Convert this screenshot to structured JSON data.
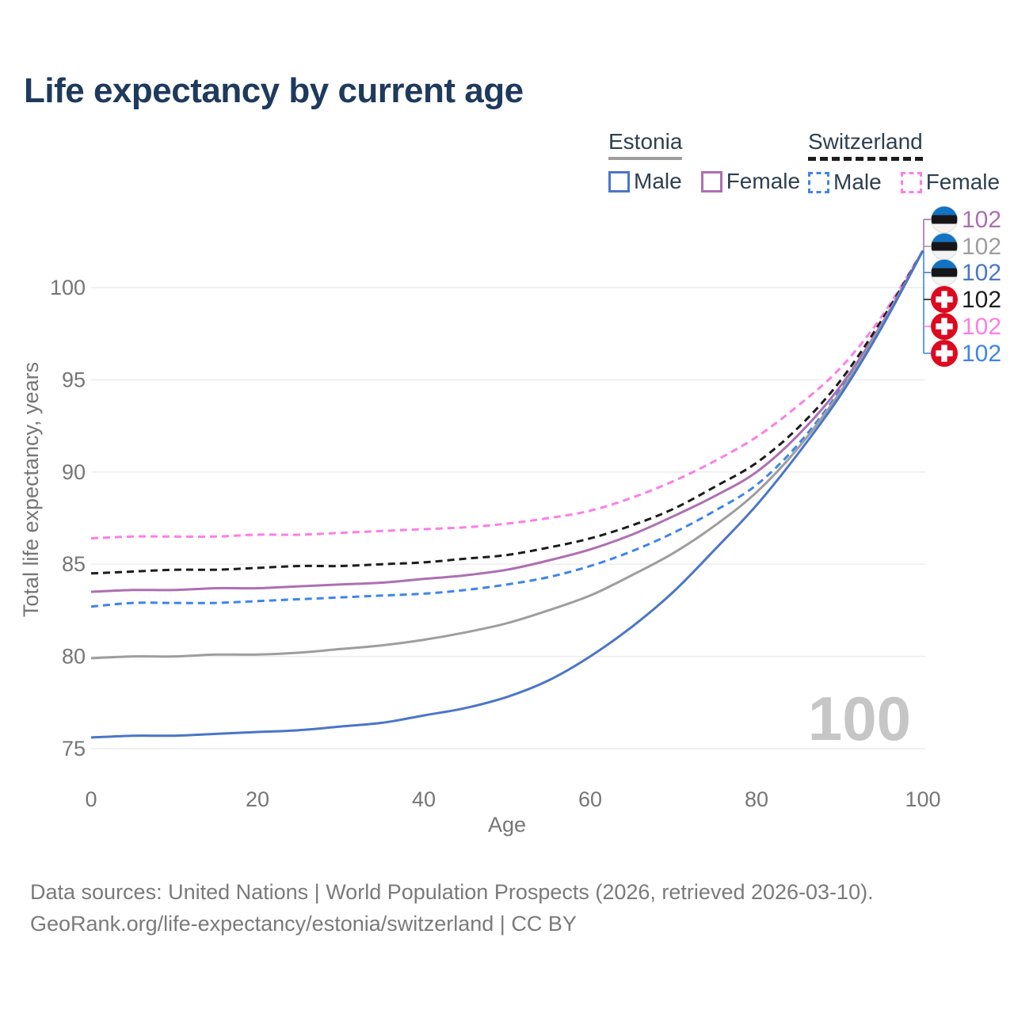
{
  "title": "Life expectancy by current age",
  "watermark": "100",
  "legend": {
    "groups": [
      {
        "name": "Estonia",
        "style": "solid",
        "underline_color": "#9e9e9e",
        "entries": [
          {
            "label": "Male",
            "color": "#4a76c8",
            "style": "solid"
          },
          {
            "label": "Female",
            "color": "#ae6fb2",
            "style": "solid"
          }
        ]
      },
      {
        "name": "Switzerland",
        "style": "dashed",
        "underline_color": "#1c1c1c",
        "entries": [
          {
            "label": "Male",
            "color": "#3d85ec",
            "style": "dashed"
          },
          {
            "label": "Female",
            "color": "#fc7ee6",
            "style": "dashed"
          }
        ]
      }
    ]
  },
  "chart_data": {
    "type": "line",
    "title": "Life expectancy by current age",
    "xlabel": "Age",
    "ylabel": "Total life expectancy, years",
    "xlim": [
      0,
      100
    ],
    "ylim": [
      74,
      103
    ],
    "xticks": [
      0,
      20,
      40,
      60,
      80,
      100
    ],
    "yticks": [
      75,
      80,
      85,
      90,
      95,
      100
    ],
    "grid": "horizontal-only",
    "legend_position": "top-right",
    "x": [
      0,
      5,
      10,
      15,
      20,
      25,
      30,
      35,
      40,
      45,
      50,
      55,
      60,
      65,
      70,
      75,
      80,
      85,
      90,
      95,
      100
    ],
    "series": [
      {
        "name": "Switzerland Female",
        "country": "Switzerland",
        "sex": "female",
        "color": "#fc7ee6",
        "style": "dashed",
        "values": [
          86.4,
          86.5,
          86.5,
          86.5,
          86.6,
          86.6,
          86.7,
          86.8,
          86.9,
          87.0,
          87.2,
          87.5,
          87.9,
          88.6,
          89.5,
          90.6,
          91.9,
          93.6,
          95.6,
          98.4,
          102
        ]
      },
      {
        "name": "Switzerland (both sexes)",
        "country": "Switzerland",
        "sex": "both",
        "color": "#1c1c1c",
        "style": "dashed",
        "values": [
          84.5,
          84.6,
          84.7,
          84.7,
          84.8,
          84.9,
          84.9,
          85.0,
          85.1,
          85.3,
          85.5,
          85.9,
          86.4,
          87.1,
          88.0,
          89.2,
          90.5,
          92.4,
          94.9,
          98.2,
          102
        ]
      },
      {
        "name": "Estonia Female",
        "country": "Estonia",
        "sex": "female",
        "color": "#ae6fb2",
        "style": "solid",
        "values": [
          83.5,
          83.6,
          83.6,
          83.7,
          83.7,
          83.8,
          83.9,
          84.0,
          84.2,
          84.4,
          84.7,
          85.2,
          85.8,
          86.6,
          87.6,
          88.7,
          90.0,
          92.0,
          94.6,
          98.0,
          102
        ]
      },
      {
        "name": "Switzerland Male",
        "country": "Switzerland",
        "sex": "male",
        "color": "#3d85ec",
        "style": "dashed",
        "values": [
          82.7,
          82.9,
          82.9,
          82.9,
          83.0,
          83.1,
          83.2,
          83.3,
          83.4,
          83.6,
          83.9,
          84.3,
          84.9,
          85.7,
          86.7,
          87.9,
          89.3,
          91.5,
          94.4,
          97.9,
          102
        ]
      },
      {
        "name": "Estonia (both sexes)",
        "country": "Estonia",
        "sex": "both",
        "color": "#9e9e9e",
        "style": "solid",
        "values": [
          79.9,
          80.0,
          80.0,
          80.1,
          80.1,
          80.2,
          80.4,
          80.6,
          80.9,
          81.3,
          81.8,
          82.5,
          83.3,
          84.4,
          85.6,
          87.1,
          88.9,
          91.3,
          94.3,
          97.9,
          102
        ]
      },
      {
        "name": "Estonia Male",
        "country": "Estonia",
        "sex": "male",
        "color": "#4a76c8",
        "style": "solid",
        "values": [
          75.6,
          75.7,
          75.7,
          75.8,
          75.9,
          76.0,
          76.2,
          76.4,
          76.8,
          77.2,
          77.8,
          78.7,
          80.0,
          81.6,
          83.5,
          85.8,
          88.2,
          91.0,
          94.1,
          97.8,
          102
        ]
      }
    ],
    "end_labels": [
      {
        "text": "102",
        "flag": "estonia",
        "series": "Estonia Female",
        "color": "#a96fb0"
      },
      {
        "text": "102",
        "flag": "estonia",
        "series": "Estonia (both sexes)",
        "color": "#9e9e9e"
      },
      {
        "text": "102",
        "flag": "estonia",
        "series": "Estonia Male",
        "color": "#4a76c8"
      },
      {
        "text": "102",
        "flag": "switzerland",
        "series": "Switzerland (both sexes)",
        "color": "#1c1c1c"
      },
      {
        "text": "102",
        "flag": "switzerland",
        "series": "Switzerland Female",
        "color": "#fc7ee6"
      },
      {
        "text": "102",
        "flag": "switzerland",
        "series": "Switzerland Male",
        "color": "#3d85ec"
      }
    ],
    "current_age_indicator": "100"
  },
  "footer": {
    "line1": "Data sources: United Nations | World Population Prospects (2026, retrieved 2026-03-10).",
    "line2": "GeoRank.org/life-expectancy/estonia/switzerland | CC BY"
  }
}
